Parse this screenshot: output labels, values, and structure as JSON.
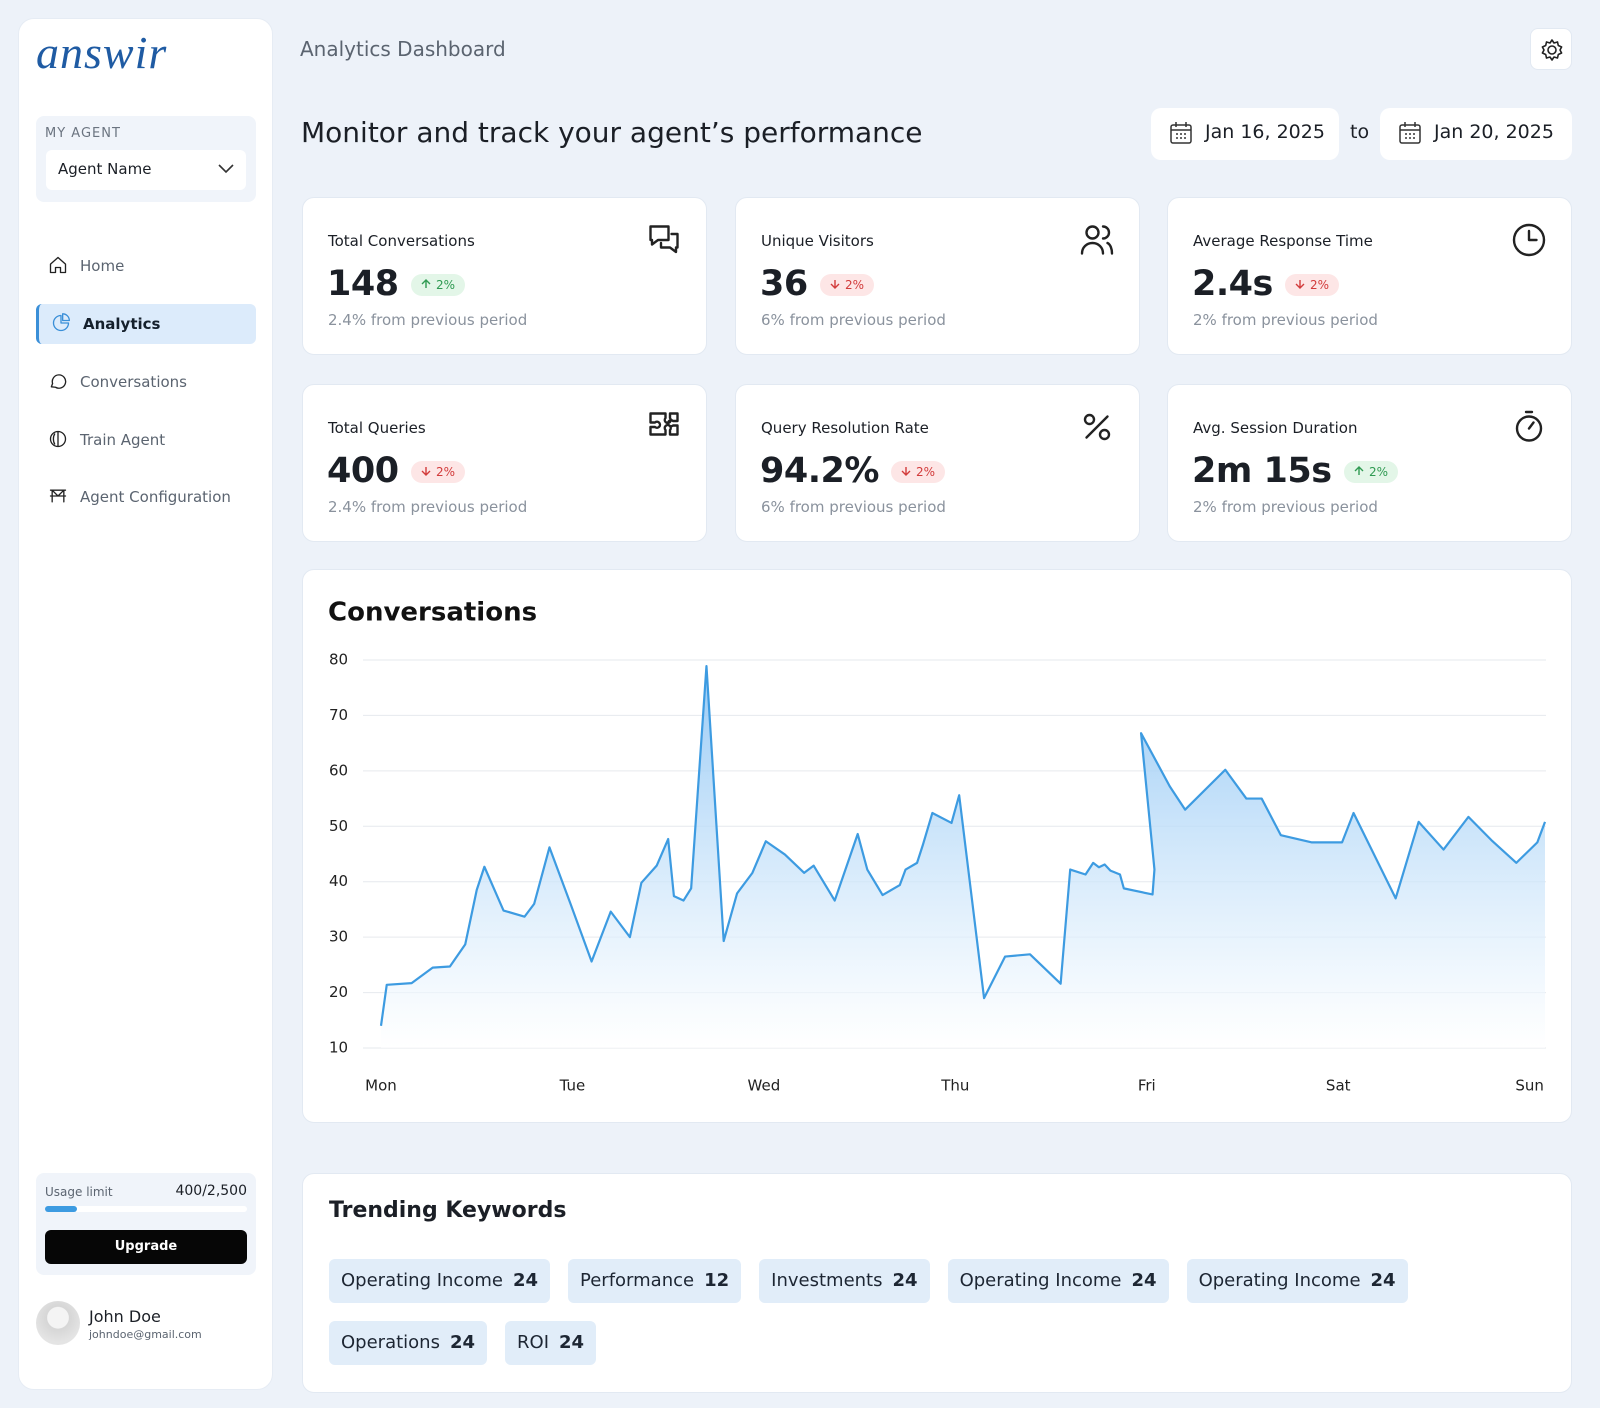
{
  "brand": "answir",
  "header": {
    "title": "Analytics Dashboard",
    "heading": "Monitor and track your agent’s performance"
  },
  "date_range": {
    "start": "Jan 16, 2025",
    "separator": "to",
    "end": "Jan 20, 2025"
  },
  "sidebar": {
    "agent_label": "MY AGENT",
    "agent_name": "Agent Name",
    "nav": [
      "Home",
      "Analytics",
      "Conversations",
      "Train Agent",
      "Agent Configuration"
    ],
    "active": "Analytics",
    "usage": {
      "label": "Usage limit",
      "used": 400,
      "limit": 2500,
      "value_label": "400/2,500"
    },
    "button": "Upgrade",
    "user": {
      "name": "John Doe",
      "email": "johndoe@gmail.com"
    }
  },
  "metrics": [
    {
      "title": "Total Conversations",
      "value": "148",
      "change": "2%",
      "trend": "up",
      "note": "2.4% from previous period"
    },
    {
      "title": "Unique Visitors",
      "value": "36",
      "change": "2%",
      "trend": "down",
      "note": "6% from previous period"
    },
    {
      "title": "Average Response Time",
      "value": "2.4s",
      "change": "2%",
      "trend": "down",
      "note": "2% from previous period"
    },
    {
      "title": "Total Queries",
      "value": "400",
      "change": "2%",
      "trend": "down",
      "note": "2.4% from previous period"
    },
    {
      "title": "Query Resolution Rate",
      "value": "94.2%",
      "change": "2%",
      "trend": "down",
      "note": "6% from previous period"
    },
    {
      "title": "Avg. Session Duration",
      "value": "2m 15s",
      "change": "2%",
      "trend": "up",
      "note": "2% from previous period"
    }
  ],
  "chart_data": {
    "type": "area",
    "title": "Conversations",
    "color": "#3d9be1",
    "x": [
      0,
      0.03,
      0.16,
      0.27,
      0.36,
      0.44,
      0.5,
      0.54,
      0.64,
      0.75,
      0.8,
      0.88,
      0.99,
      1.1,
      1.2,
      1.3,
      1.36,
      1.44,
      1.5,
      1.53,
      1.58,
      1.62,
      1.7,
      1.79,
      1.86,
      1.94,
      2.01,
      2.11,
      2.21,
      2.26,
      2.37,
      2.49,
      2.54,
      2.62,
      2.71,
      2.74,
      2.8,
      2.83,
      2.88,
      2.98,
      3.02,
      3.15,
      3.26,
      3.39,
      3.55,
      3.6,
      3.68,
      3.72,
      3.75,
      3.78,
      3.81,
      3.86,
      3.88,
      4.03,
      4.04,
      3.97,
      4.12,
      4.2,
      4.41,
      4.52,
      4.6,
      4.7,
      4.86,
      5.02,
      5.08,
      5.3,
      5.42,
      5.55,
      5.68,
      5.8,
      5.93,
      6.04,
      6.08
    ],
    "values": [
      14,
      21.4,
      21.7,
      24.5,
      24.7,
      28.7,
      38.5,
      42.7,
      34.8,
      33.7,
      36,
      46.2,
      36,
      25.6,
      34.6,
      30,
      39.8,
      42.9,
      47.7,
      37.4,
      36.6,
      38.8,
      78.9,
      29.3,
      37.9,
      41.6,
      47.3,
      44.9,
      41.6,
      42.9,
      36.6,
      48.6,
      42.2,
      37.6,
      39.4,
      42.2,
      43.4,
      46.6,
      52.4,
      50.6,
      55.6,
      19,
      26.5,
      26.9,
      21.6,
      42.2,
      41.3,
      43.4,
      42.6,
      43.1,
      42,
      41.3,
      38.8,
      37.7,
      42.2,
      66.8,
      57.2,
      53,
      60.2,
      55,
      55,
      48.4,
      47.1,
      47.1,
      52.4,
      37,
      50.8,
      45.8,
      51.7,
      47.5,
      43.4,
      47.1,
      50.8
    ],
    "xlim": [
      0,
      6.08
    ],
    "xticks": [
      {
        "value": 0,
        "label": "Mon"
      },
      {
        "value": 1,
        "label": "Tue"
      },
      {
        "value": 2,
        "label": "Wed"
      },
      {
        "value": 3,
        "label": "Thu"
      },
      {
        "value": 4,
        "label": "Fri"
      },
      {
        "value": 5,
        "label": "Sat"
      },
      {
        "value": 6,
        "label": "Sun"
      }
    ],
    "ylim": [
      10,
      80
    ],
    "yticks": [
      10,
      20,
      30,
      40,
      50,
      60,
      70,
      80
    ],
    "grid": true
  },
  "trending": {
    "title": "Trending Keywords",
    "keywords": [
      {
        "label": "Operating Income",
        "count": "24"
      },
      {
        "label": "Performance",
        "count": "12"
      },
      {
        "label": "Investments",
        "count": "24"
      },
      {
        "label": "Operating Income",
        "count": "24"
      },
      {
        "label": "Operating Income",
        "count": "24"
      },
      {
        "label": "Operations",
        "count": "24"
      },
      {
        "label": "ROI",
        "count": "24"
      }
    ]
  }
}
